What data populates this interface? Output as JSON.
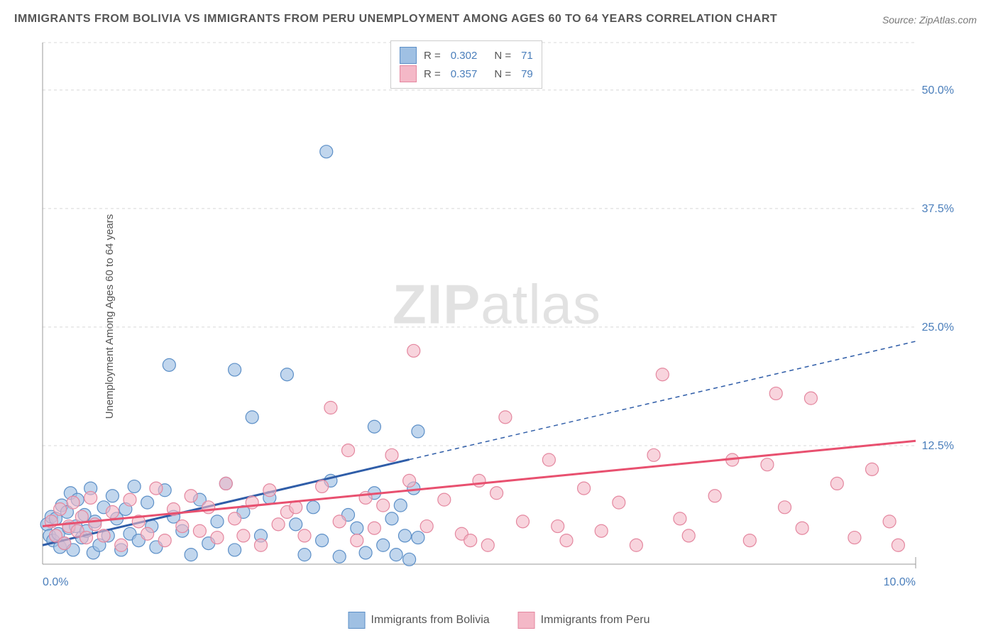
{
  "chart": {
    "type": "scatter-correlation",
    "title": "IMMIGRANTS FROM BOLIVIA VS IMMIGRANTS FROM PERU UNEMPLOYMENT AMONG AGES 60 TO 64 YEARS CORRELATION CHART",
    "source": "Source: ZipAtlas.com",
    "watermark_html": "<b>ZIP</b>atlas",
    "y_axis_label": "Unemployment Among Ages 60 to 64 years",
    "background_color": "#ffffff",
    "grid_color": "#d8d8d8",
    "grid_dash": "4 4",
    "axis_line_color": "#999999",
    "x_axis": {
      "min": 0.0,
      "max": 10.0,
      "ticks": [
        {
          "value": 0.0,
          "label": "0.0%"
        },
        {
          "value": 10.0,
          "label": "10.0%"
        }
      ],
      "tick_color": "#4a7ebb",
      "tick_fontsize": 16
    },
    "y_axis": {
      "min": 0.0,
      "max": 55.0,
      "ticks": [
        {
          "value": 12.5,
          "label": "12.5%"
        },
        {
          "value": 25.0,
          "label": "25.0%"
        },
        {
          "value": 37.5,
          "label": "37.5%"
        },
        {
          "value": 50.0,
          "label": "50.0%"
        }
      ],
      "tick_color": "#4a7ebb",
      "tick_fontsize": 16
    },
    "series": [
      {
        "name": "Immigrants from Bolivia",
        "R": "0.302",
        "N": "71",
        "marker_fill": "#9fc0e3",
        "marker_stroke": "#5c8fc7",
        "marker_opacity": 0.65,
        "marker_radius": 9,
        "trend_color": "#2f5da8",
        "trend_solid_xmax": 4.2,
        "trend_y_at_x0": 2.0,
        "trend_y_at_xmax": 23.5,
        "points": [
          [
            0.05,
            4.2
          ],
          [
            0.08,
            3.0
          ],
          [
            0.1,
            5.0
          ],
          [
            0.12,
            2.5
          ],
          [
            0.15,
            4.8
          ],
          [
            0.18,
            3.2
          ],
          [
            0.2,
            1.8
          ],
          [
            0.22,
            6.2
          ],
          [
            0.25,
            2.2
          ],
          [
            0.28,
            5.5
          ],
          [
            0.3,
            3.8
          ],
          [
            0.32,
            7.5
          ],
          [
            0.35,
            1.5
          ],
          [
            0.38,
            4.0
          ],
          [
            0.4,
            6.8
          ],
          [
            0.45,
            2.8
          ],
          [
            0.48,
            5.2
          ],
          [
            0.5,
            3.5
          ],
          [
            0.55,
            8.0
          ],
          [
            0.58,
            1.2
          ],
          [
            0.6,
            4.5
          ],
          [
            0.65,
            2.0
          ],
          [
            0.7,
            6.0
          ],
          [
            0.75,
            3.0
          ],
          [
            0.8,
            7.2
          ],
          [
            0.85,
            4.8
          ],
          [
            0.9,
            1.5
          ],
          [
            0.95,
            5.8
          ],
          [
            1.0,
            3.2
          ],
          [
            1.05,
            8.2
          ],
          [
            1.1,
            2.5
          ],
          [
            1.2,
            6.5
          ],
          [
            1.25,
            4.0
          ],
          [
            1.3,
            1.8
          ],
          [
            1.4,
            7.8
          ],
          [
            1.45,
            21.0
          ],
          [
            1.5,
            5.0
          ],
          [
            1.6,
            3.5
          ],
          [
            1.7,
            1.0
          ],
          [
            1.8,
            6.8
          ],
          [
            1.9,
            2.2
          ],
          [
            2.0,
            4.5
          ],
          [
            2.1,
            8.5
          ],
          [
            2.2,
            20.5
          ],
          [
            2.2,
            1.5
          ],
          [
            2.3,
            5.5
          ],
          [
            2.4,
            15.5
          ],
          [
            2.5,
            3.0
          ],
          [
            2.6,
            7.0
          ],
          [
            2.8,
            20.0
          ],
          [
            2.9,
            4.2
          ],
          [
            3.0,
            1.0
          ],
          [
            3.1,
            6.0
          ],
          [
            3.2,
            2.5
          ],
          [
            3.25,
            43.5
          ],
          [
            3.3,
            8.8
          ],
          [
            3.4,
            0.8
          ],
          [
            3.5,
            5.2
          ],
          [
            3.6,
            3.8
          ],
          [
            3.7,
            1.2
          ],
          [
            3.8,
            14.5
          ],
          [
            3.8,
            7.5
          ],
          [
            3.9,
            2.0
          ],
          [
            4.0,
            4.8
          ],
          [
            4.05,
            1.0
          ],
          [
            4.1,
            6.2
          ],
          [
            4.15,
            3.0
          ],
          [
            4.2,
            0.5
          ],
          [
            4.25,
            8.0
          ],
          [
            4.3,
            14.0
          ],
          [
            4.3,
            2.8
          ]
        ]
      },
      {
        "name": "Immigrants from Peru",
        "R": "0.357",
        "N": "79",
        "marker_fill": "#f4b8c7",
        "marker_stroke": "#e4879f",
        "marker_opacity": 0.6,
        "marker_radius": 9,
        "trend_color": "#e8506f",
        "trend_solid_xmax": 10.0,
        "trend_y_at_x0": 4.0,
        "trend_y_at_xmax": 13.0,
        "points": [
          [
            0.1,
            4.5
          ],
          [
            0.15,
            3.0
          ],
          [
            0.2,
            5.8
          ],
          [
            0.25,
            2.2
          ],
          [
            0.3,
            4.0
          ],
          [
            0.35,
            6.5
          ],
          [
            0.4,
            3.5
          ],
          [
            0.45,
            5.0
          ],
          [
            0.5,
            2.8
          ],
          [
            0.55,
            7.0
          ],
          [
            0.6,
            4.2
          ],
          [
            0.7,
            3.0
          ],
          [
            0.8,
            5.5
          ],
          [
            0.9,
            2.0
          ],
          [
            1.0,
            6.8
          ],
          [
            1.1,
            4.5
          ],
          [
            1.2,
            3.2
          ],
          [
            1.3,
            8.0
          ],
          [
            1.4,
            2.5
          ],
          [
            1.5,
            5.8
          ],
          [
            1.6,
            4.0
          ],
          [
            1.7,
            7.2
          ],
          [
            1.8,
            3.5
          ],
          [
            1.9,
            6.0
          ],
          [
            2.0,
            2.8
          ],
          [
            2.1,
            8.5
          ],
          [
            2.2,
            4.8
          ],
          [
            2.3,
            3.0
          ],
          [
            2.4,
            6.5
          ],
          [
            2.5,
            2.0
          ],
          [
            2.6,
            7.8
          ],
          [
            2.7,
            4.2
          ],
          [
            2.8,
            5.5
          ],
          [
            2.9,
            6.0
          ],
          [
            3.0,
            3.0
          ],
          [
            3.2,
            8.2
          ],
          [
            3.3,
            16.5
          ],
          [
            3.4,
            4.5
          ],
          [
            3.5,
            12.0
          ],
          [
            3.6,
            2.5
          ],
          [
            3.7,
            7.0
          ],
          [
            3.8,
            3.8
          ],
          [
            3.9,
            6.2
          ],
          [
            4.0,
            11.5
          ],
          [
            4.2,
            8.8
          ],
          [
            4.25,
            22.5
          ],
          [
            4.4,
            4.0
          ],
          [
            4.6,
            6.8
          ],
          [
            4.8,
            3.2
          ],
          [
            4.9,
            2.5
          ],
          [
            5.0,
            8.8
          ],
          [
            5.1,
            2.0
          ],
          [
            5.2,
            7.5
          ],
          [
            5.3,
            15.5
          ],
          [
            5.5,
            4.5
          ],
          [
            5.8,
            11.0
          ],
          [
            5.9,
            4.0
          ],
          [
            6.0,
            2.5
          ],
          [
            6.2,
            8.0
          ],
          [
            6.4,
            3.5
          ],
          [
            6.6,
            6.5
          ],
          [
            6.8,
            2.0
          ],
          [
            7.0,
            11.5
          ],
          [
            7.1,
            20.0
          ],
          [
            7.3,
            4.8
          ],
          [
            7.4,
            3.0
          ],
          [
            7.7,
            7.2
          ],
          [
            7.9,
            11.0
          ],
          [
            8.1,
            2.5
          ],
          [
            8.3,
            10.5
          ],
          [
            8.4,
            18.0
          ],
          [
            8.5,
            6.0
          ],
          [
            8.7,
            3.8
          ],
          [
            8.8,
            17.5
          ],
          [
            9.1,
            8.5
          ],
          [
            9.3,
            2.8
          ],
          [
            9.5,
            10.0
          ],
          [
            9.7,
            4.5
          ],
          [
            9.8,
            2.0
          ]
        ]
      }
    ],
    "legend_bottom": [
      {
        "label": "Immigrants from Bolivia",
        "fill": "#9fc0e3",
        "stroke": "#5c8fc7"
      },
      {
        "label": "Immigrants from Peru",
        "fill": "#f4b8c7",
        "stroke": "#e4879f"
      }
    ],
    "legend_stats_label_R": "R =",
    "legend_stats_label_N": "N ="
  }
}
